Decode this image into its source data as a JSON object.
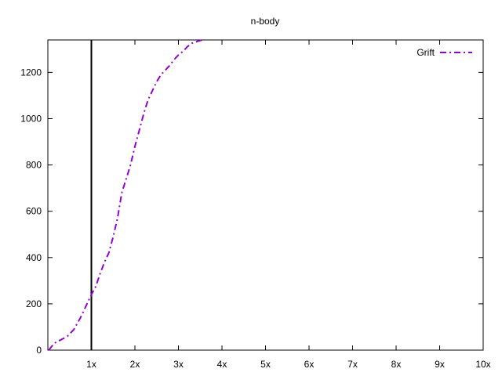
{
  "chart_data": {
    "type": "line",
    "title": "n-body",
    "xlabel": "",
    "ylabel": "",
    "xlim": [
      0,
      10
    ],
    "ylim": [
      0,
      1340
    ],
    "x_ticks": [
      1,
      2,
      3,
      4,
      5,
      6,
      7,
      8,
      9,
      10
    ],
    "x_tick_labels": [
      "1x",
      "2x",
      "3x",
      "4x",
      "5x",
      "6x",
      "7x",
      "8x",
      "9x",
      "10x"
    ],
    "y_ticks": [
      0,
      200,
      400,
      600,
      800,
      1000,
      1200
    ],
    "y_tick_labels": [
      "0",
      "200",
      "400",
      "600",
      "800",
      "1000",
      "1200"
    ],
    "grid": false,
    "legend_position": "top-right",
    "reference_line_x": 1,
    "series": [
      {
        "name": "Grift",
        "color": "#9400d3",
        "style": "dash-dot",
        "x": [
          0.02,
          0.15,
          0.3,
          0.45,
          0.6,
          0.75,
          0.9,
          1.0,
          1.1,
          1.2,
          1.3,
          1.4,
          1.5,
          1.6,
          1.7,
          1.8,
          1.9,
          2.0,
          2.1,
          2.2,
          2.3,
          2.4,
          2.5,
          2.6,
          2.7,
          2.8,
          2.9,
          3.0,
          3.1,
          3.2,
          3.3,
          3.45,
          3.55
        ],
        "y": [
          0,
          30,
          45,
          60,
          90,
          140,
          200,
          240,
          275,
          330,
          380,
          420,
          490,
          570,
          680,
          740,
          800,
          880,
          950,
          1020,
          1080,
          1120,
          1160,
          1190,
          1210,
          1230,
          1255,
          1275,
          1290,
          1310,
          1325,
          1335,
          1340
        ]
      }
    ]
  }
}
